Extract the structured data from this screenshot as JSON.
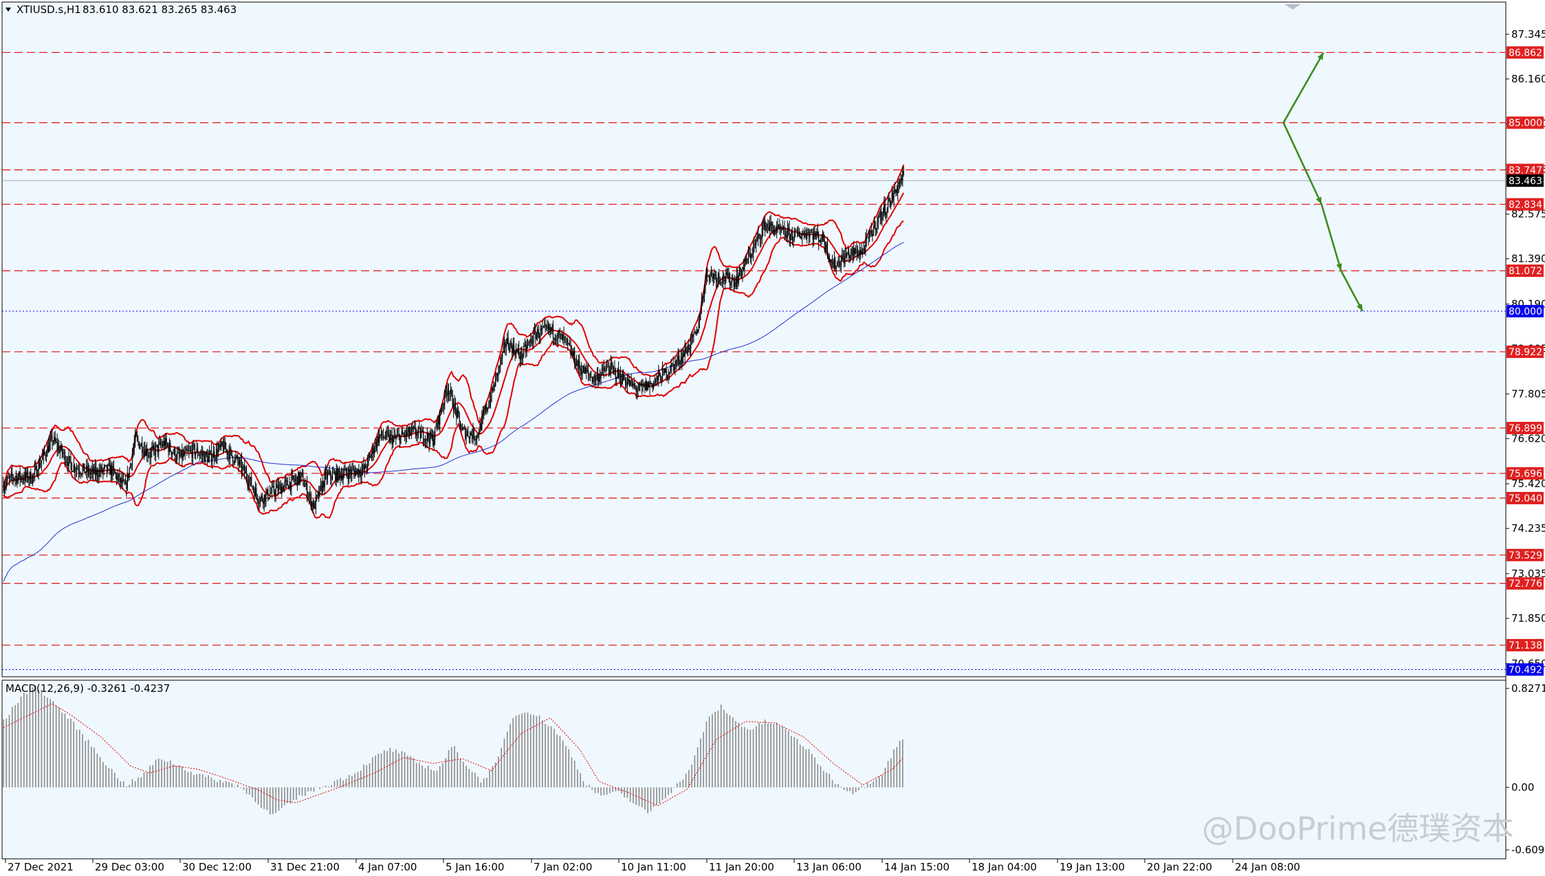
{
  "header": {
    "symbol": "XTIUSD.s,H1",
    "ohlc": "83.610 83.621 83.265 83.463"
  },
  "watermark": "@DooPrime德璞资本",
  "colors": {
    "background": "#f0f8ff",
    "level": "#e02020",
    "bollinger": "#e00000",
    "ma": "#2030d0",
    "candle": "#000000",
    "arrow": "#3c8c1e",
    "support": "#0000ee",
    "macd_hist": "#8a8a8a",
    "macd_signal": "#e00000"
  },
  "chart_data": [
    {
      "type": "line",
      "title": "",
      "instrument": "XTIUSD.s",
      "timeframe": "H1",
      "ylim": [
        70.3,
        88.2
      ],
      "y_ticks": [
        "87.345",
        "86.160",
        "84.970",
        "83.765",
        "82.575",
        "81.390",
        "80.190",
        "79.005",
        "77.805",
        "76.620",
        "75.420",
        "74.235",
        "73.035",
        "71.850",
        "70.650"
      ],
      "x_ticks": [
        "27 Dec 2021",
        "29 Dec 03:00",
        "30 Dec 12:00",
        "31 Dec 21:00",
        "4 Jan 07:00",
        "5 Jan 16:00",
        "7 Jan 02:00",
        "10 Jan 11:00",
        "11 Jan 20:00",
        "13 Jan 06:00",
        "14 Jan 15:00",
        "18 Jan 04:00",
        "19 Jan 13:00",
        "20 Jan 22:00",
        "24 Jan 08:00"
      ],
      "price_levels": [
        "86.862",
        "85.000",
        "83.747",
        "82.834",
        "81.072",
        "78.922",
        "76.899",
        "75.696",
        "75.040",
        "73.529",
        "72.776",
        "71.138"
      ],
      "support_levels": [
        "80.000",
        "70.492"
      ],
      "current_price": "83.463",
      "price_path": [
        [
          0,
          75.4
        ],
        [
          10,
          75.6
        ],
        [
          30,
          75.6
        ],
        [
          50,
          76.6
        ],
        [
          70,
          75.9
        ],
        [
          90,
          75.7
        ],
        [
          110,
          75.8
        ],
        [
          125,
          75.3
        ],
        [
          135,
          76.6
        ],
        [
          150,
          76.2
        ],
        [
          165,
          76.5
        ],
        [
          180,
          76.1
        ],
        [
          195,
          76.3
        ],
        [
          210,
          76.1
        ],
        [
          225,
          76.4
        ],
        [
          240,
          76.0
        ],
        [
          250,
          75.6
        ],
        [
          262,
          75.0
        ],
        [
          275,
          75.2
        ],
        [
          290,
          75.4
        ],
        [
          305,
          75.6
        ],
        [
          318,
          74.8
        ],
        [
          330,
          75.6
        ],
        [
          350,
          75.7
        ],
        [
          370,
          75.8
        ],
        [
          385,
          76.7
        ],
        [
          400,
          76.6
        ],
        [
          420,
          76.8
        ],
        [
          440,
          76.6
        ],
        [
          455,
          78.0
        ],
        [
          470,
          76.8
        ],
        [
          485,
          76.7
        ],
        [
          500,
          77.8
        ],
        [
          515,
          79.2
        ],
        [
          530,
          78.8
        ],
        [
          545,
          79.4
        ],
        [
          560,
          79.5
        ],
        [
          575,
          79.2
        ],
        [
          590,
          78.5
        ],
        [
          605,
          78.2
        ],
        [
          620,
          78.5
        ],
        [
          635,
          78.2
        ],
        [
          650,
          77.9
        ],
        [
          665,
          78.1
        ],
        [
          680,
          78.4
        ],
        [
          695,
          78.8
        ],
        [
          710,
          79.4
        ],
        [
          720,
          81.0
        ],
        [
          735,
          80.9
        ],
        [
          750,
          80.8
        ],
        [
          765,
          81.5
        ],
        [
          780,
          82.3
        ],
        [
          795,
          82.1
        ],
        [
          810,
          82.0
        ],
        [
          825,
          82.1
        ],
        [
          840,
          81.9
        ],
        [
          850,
          81.2
        ],
        [
          865,
          81.5
        ],
        [
          880,
          81.6
        ],
        [
          895,
          82.4
        ],
        [
          910,
          83.0
        ],
        [
          925,
          83.8
        ],
        [
          940,
          83.6
        ],
        [
          955,
          83.2
        ],
        [
          970,
          83.7
        ],
        [
          985,
          84.4
        ],
        [
          1000,
          84.9
        ],
        [
          1015,
          84.5
        ],
        [
          1030,
          84.3
        ],
        [
          1045,
          86.2
        ],
        [
          1060,
          85.5
        ],
        [
          1075,
          85.6
        ],
        [
          1090,
          86.5
        ],
        [
          1105,
          85.2
        ],
        [
          1120,
          85.5
        ],
        [
          1135,
          85.0
        ],
        [
          1150,
          85.3
        ],
        [
          1158,
          86.4
        ],
        [
          1165,
          84.8
        ],
        [
          1175,
          83.3
        ],
        [
          1190,
          83.7
        ],
        [
          1205,
          84.1
        ],
        [
          1215,
          84.7
        ],
        [
          1230,
          85.2
        ],
        [
          1240,
          86.0
        ],
        [
          1255,
          85.8
        ],
        [
          1268,
          85.1
        ],
        [
          1275,
          83.0
        ],
        [
          1282,
          81.8
        ],
        [
          1290,
          82.8
        ],
        [
          1300,
          83.7
        ],
        [
          1310,
          83.463
        ]
      ]
    },
    {
      "type": "bar",
      "title": "MACD(12,26,9) -0.3261 -0.4237",
      "indicator": "MACD",
      "params": "12,26,9",
      "ylim": [
        -0.6093,
        0.8271
      ],
      "y_ticks": [
        "0.8271",
        "0.00",
        "-0.6093"
      ],
      "macd_path": [
        [
          0,
          0.55
        ],
        [
          20,
          0.78
        ],
        [
          35,
          0.84
        ],
        [
          50,
          0.72
        ],
        [
          70,
          0.55
        ],
        [
          90,
          0.35
        ],
        [
          110,
          0.15
        ],
        [
          125,
          0.02
        ],
        [
          140,
          0.08
        ],
        [
          160,
          0.25
        ],
        [
          175,
          0.2
        ],
        [
          195,
          0.12
        ],
        [
          215,
          0.07
        ],
        [
          240,
          0.02
        ],
        [
          255,
          -0.1
        ],
        [
          275,
          -0.28
        ],
        [
          290,
          -0.18
        ],
        [
          305,
          -0.08
        ],
        [
          320,
          -0.02
        ],
        [
          340,
          0.05
        ],
        [
          360,
          0.12
        ],
        [
          380,
          0.25
        ],
        [
          395,
          0.32
        ],
        [
          410,
          0.28
        ],
        [
          425,
          0.2
        ],
        [
          445,
          0.14
        ],
        [
          460,
          0.35
        ],
        [
          475,
          0.18
        ],
        [
          490,
          0.05
        ],
        [
          505,
          0.2
        ],
        [
          520,
          0.57
        ],
        [
          535,
          0.65
        ],
        [
          550,
          0.58
        ],
        [
          565,
          0.48
        ],
        [
          580,
          0.3
        ],
        [
          595,
          0.05
        ],
        [
          610,
          -0.08
        ],
        [
          630,
          -0.05
        ],
        [
          645,
          -0.15
        ],
        [
          660,
          -0.25
        ],
        [
          675,
          -0.12
        ],
        [
          690,
          0.02
        ],
        [
          705,
          0.18
        ],
        [
          720,
          0.55
        ],
        [
          735,
          0.68
        ],
        [
          750,
          0.55
        ],
        [
          765,
          0.48
        ],
        [
          780,
          0.55
        ],
        [
          795,
          0.52
        ],
        [
          810,
          0.42
        ],
        [
          825,
          0.3
        ],
        [
          840,
          0.15
        ],
        [
          855,
          0.02
        ],
        [
          870,
          -0.05
        ],
        [
          885,
          0.03
        ],
        [
          900,
          0.12
        ],
        [
          915,
          0.35
        ],
        [
          930,
          0.48
        ],
        [
          945,
          0.4
        ],
        [
          960,
          0.3
        ],
        [
          975,
          0.2
        ],
        [
          990,
          0.18
        ],
        [
          1005,
          0.25
        ],
        [
          1020,
          0.18
        ],
        [
          1035,
          0.22
        ],
        [
          1050,
          0.45
        ],
        [
          1065,
          0.35
        ],
        [
          1080,
          0.28
        ],
        [
          1095,
          0.2
        ],
        [
          1110,
          0.08
        ],
        [
          1125,
          0.02
        ],
        [
          1140,
          0.03
        ],
        [
          1155,
          0.02
        ],
        [
          1165,
          -0.15
        ],
        [
          1175,
          -0.45
        ],
        [
          1185,
          -0.52
        ],
        [
          1200,
          -0.35
        ],
        [
          1215,
          -0.15
        ],
        [
          1230,
          0.05
        ],
        [
          1245,
          0.25
        ],
        [
          1260,
          0.22
        ],
        [
          1275,
          0.05
        ],
        [
          1285,
          -0.5
        ],
        [
          1295,
          -0.55
        ],
        [
          1310,
          -0.3261
        ]
      ],
      "signal_path": [
        [
          0,
          0.5
        ],
        [
          30,
          0.62
        ],
        [
          50,
          0.7
        ],
        [
          70,
          0.6
        ],
        [
          100,
          0.42
        ],
        [
          130,
          0.18
        ],
        [
          150,
          0.12
        ],
        [
          175,
          0.18
        ],
        [
          200,
          0.15
        ],
        [
          230,
          0.07
        ],
        [
          260,
          -0.02
        ],
        [
          280,
          -0.12
        ],
        [
          300,
          -0.15
        ],
        [
          320,
          -0.08
        ],
        [
          350,
          0.02
        ],
        [
          380,
          0.12
        ],
        [
          410,
          0.25
        ],
        [
          440,
          0.2
        ],
        [
          470,
          0.24
        ],
        [
          500,
          0.14
        ],
        [
          530,
          0.45
        ],
        [
          560,
          0.58
        ],
        [
          590,
          0.32
        ],
        [
          610,
          0.05
        ],
        [
          640,
          -0.05
        ],
        [
          670,
          -0.18
        ],
        [
          700,
          -0.02
        ],
        [
          730,
          0.4
        ],
        [
          760,
          0.55
        ],
        [
          790,
          0.54
        ],
        [
          820,
          0.42
        ],
        [
          850,
          0.2
        ],
        [
          880,
          0.02
        ],
        [
          910,
          0.15
        ],
        [
          940,
          0.4
        ],
        [
          970,
          0.32
        ],
        [
          1000,
          0.2
        ],
        [
          1030,
          0.22
        ],
        [
          1060,
          0.38
        ],
        [
          1090,
          0.28
        ],
        [
          1120,
          0.08
        ],
        [
          1150,
          0.03
        ],
        [
          1170,
          -0.05
        ],
        [
          1190,
          -0.32
        ],
        [
          1215,
          -0.28
        ],
        [
          1240,
          0.05
        ],
        [
          1265,
          0.2
        ],
        [
          1285,
          -0.1
        ],
        [
          1310,
          -0.4237
        ]
      ]
    }
  ]
}
